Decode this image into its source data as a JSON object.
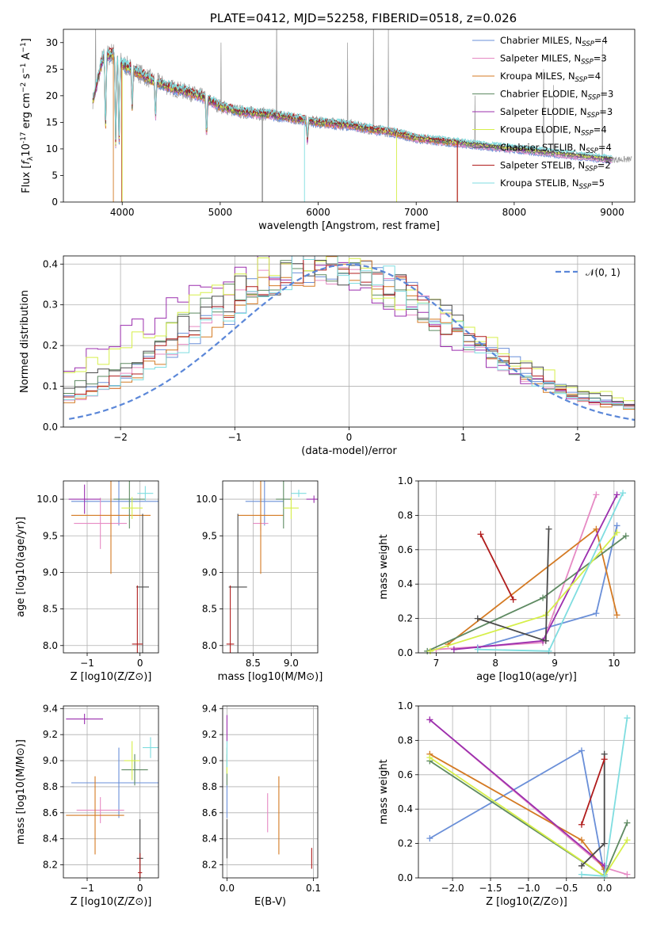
{
  "chart_data": [
    {
      "id": "spectrum",
      "type": "line",
      "title": "PLATE=0412, MJD=52258, FIBERID=0518, z=0.026",
      "xlabel": "wavelength [Angstrom, rest frame]",
      "ylabel_base": "Flux [",
      "ylabel_rest": "10",
      "ylabel_exp": "-17",
      "ylabel_tail": " erg cm",
      "xlim": [
        3400,
        9230
      ],
      "ylim": [
        0,
        32.5
      ],
      "xticks": [
        4000,
        5000,
        6000,
        7000,
        8000,
        9000
      ],
      "yticks": [
        0,
        5,
        10,
        15,
        20,
        25,
        30
      ],
      "grid": false,
      "legend_position": "top-right",
      "legend": [
        {
          "label": "Chabrier MILES, N",
          "sub": "SSP",
          "n": "=4",
          "color": "#6a8fd8"
        },
        {
          "label": "Salpeter MILES, N",
          "sub": "SSP",
          "n": "=3",
          "color": "#e68ac4"
        },
        {
          "label": "Kroupa MILES, N",
          "sub": "SSP",
          "n": "=4",
          "color": "#d47a23"
        },
        {
          "label": "Chabrier ELODIE, N",
          "sub": "SSP",
          "n": "=3",
          "color": "#5e8a62"
        },
        {
          "label": "Salpeter ELODIE, N",
          "sub": "SSP",
          "n": "=3",
          "color": "#9b2fae"
        },
        {
          "label": "Kroupa ELODIE, N",
          "sub": "SSP",
          "n": "=4",
          "color": "#d6ef4a"
        },
        {
          "label": "Chabrier STELIB, N",
          "sub": "SSP",
          "n": "=4",
          "color": "#4a4a4a"
        },
        {
          "label": "Salpeter STELIB, N",
          "sub": "SSP",
          "n": "=2",
          "color": "#b01c1c"
        },
        {
          "label": "Kroupa STELIB, N",
          "sub": "SSP",
          "n": "=5",
          "color": "#7fdde0"
        }
      ],
      "continuum": [
        [
          3700,
          19
        ],
        [
          3800,
          27
        ],
        [
          3900,
          28
        ],
        [
          4000,
          26
        ],
        [
          4100,
          25
        ],
        [
          4200,
          24
        ],
        [
          4300,
          23
        ],
        [
          4500,
          21.5
        ],
        [
          4800,
          20
        ],
        [
          5000,
          18
        ],
        [
          5200,
          17
        ],
        [
          5500,
          16.5
        ],
        [
          6000,
          15
        ],
        [
          6300,
          14.5
        ],
        [
          6600,
          13.5
        ],
        [
          6800,
          13
        ],
        [
          7000,
          12
        ],
        [
          7500,
          11
        ],
        [
          8000,
          10
        ],
        [
          8500,
          9
        ],
        [
          9000,
          8
        ]
      ],
      "dips": [
        [
          3934,
          0.6
        ],
        [
          3968,
          0.6
        ],
        [
          3830,
          0.5
        ],
        [
          4861,
          0.35
        ],
        [
          5890,
          0.25
        ],
        [
          4102,
          0.3
        ],
        [
          4340,
          0.3
        ]
      ],
      "spikes": [
        [
          3727,
          36
        ],
        [
          5007,
          30
        ],
        [
          5577,
          38
        ],
        [
          6300,
          30
        ],
        [
          6563,
          38
        ],
        [
          6717,
          33
        ],
        [
          7600,
          20
        ],
        [
          8300,
          25
        ],
        [
          8400,
          22
        ],
        [
          8900,
          30
        ]
      ]
    },
    {
      "id": "residuals",
      "type": "histogram",
      "xlabel": "(data-model)/error",
      "ylabel": "Normed distribution",
      "xlim": [
        -2.5,
        2.5
      ],
      "ylim": [
        0,
        0.42
      ],
      "xticks": [
        -2,
        -1,
        0,
        1,
        2
      ],
      "yticks": [
        0.0,
        0.1,
        0.2,
        0.3,
        0.4
      ],
      "grid": true,
      "legend_position": "top-right",
      "legend_label": "N(0,1)",
      "normal_color": "#5b87d8"
    },
    {
      "id": "age-vs-Z",
      "type": "scatter",
      "xlabel": "Z [log10(Z/Z⊙)]",
      "ylabel": "age  [log10(age/yr)]",
      "xlim": [
        -1.45,
        0.35
      ],
      "ylim": [
        7.9,
        10.25
      ],
      "xticks": [
        -1,
        0
      ],
      "yticks": [
        8.0,
        8.5,
        9.0,
        9.5,
        10.0
      ],
      "points": [
        {
          "x": -0.4,
          "y": 9.97,
          "xerr": 0.9,
          "yerr": 0.33,
          "c": 0
        },
        {
          "x": -0.75,
          "y": 9.67,
          "xerr": 0.5,
          "yerr": 0.35,
          "c": 1
        },
        {
          "x": -0.55,
          "y": 9.78,
          "xerr": 0.75,
          "yerr": 0.8,
          "c": 2
        },
        {
          "x": -0.2,
          "y": 10.0,
          "xerr": 0.3,
          "yerr": 0.4,
          "c": 3
        },
        {
          "x": -1.05,
          "y": 10.0,
          "xerr": 0.3,
          "yerr": 0.2,
          "c": 4
        },
        {
          "x": -0.15,
          "y": 9.88,
          "xerr": 0.2,
          "yerr": 0.15,
          "c": 5
        },
        {
          "x": 0.05,
          "y": 8.8,
          "xerr": 0.12,
          "yerr": 1.0,
          "c": 6
        },
        {
          "x": -0.05,
          "y": 8.02,
          "xerr": 0.1,
          "yerr": 0.8,
          "c": 7
        },
        {
          "x": 0.1,
          "y": 10.08,
          "xerr": 0.15,
          "yerr": 0.1,
          "c": 8
        }
      ]
    },
    {
      "id": "age-vs-mass",
      "type": "scatter",
      "xlabel": "mass [log10(M/M⊙)]",
      "ylabel": "",
      "xlim": [
        8.1,
        9.35
      ],
      "ylim": [
        7.9,
        10.25
      ],
      "xticks": [
        8.5,
        9.0
      ],
      "yticks": [
        8.0,
        8.5,
        9.0,
        9.5,
        10.0
      ],
      "points": [
        {
          "x": 8.65,
          "y": 9.97,
          "xerr": 0.25,
          "yerr": 0.33,
          "c": 0
        },
        {
          "x": 8.6,
          "y": 9.67,
          "xerr": 0.1,
          "yerr": 0.1,
          "c": 1
        },
        {
          "x": 8.6,
          "y": 9.78,
          "xerr": 0.3,
          "yerr": 0.8,
          "c": 2
        },
        {
          "x": 8.9,
          "y": 10.0,
          "xerr": 0.1,
          "yerr": 0.4,
          "c": 3
        },
        {
          "x": 9.3,
          "y": 10.0,
          "xerr": 0.1,
          "yerr": 0.05,
          "c": 4
        },
        {
          "x": 9.0,
          "y": 9.88,
          "xerr": 0.1,
          "yerr": 0.15,
          "c": 5
        },
        {
          "x": 8.3,
          "y": 8.8,
          "xerr": 0.12,
          "yerr": 1.0,
          "c": 6
        },
        {
          "x": 8.2,
          "y": 8.02,
          "xerr": 0.05,
          "yerr": 0.8,
          "c": 7
        },
        {
          "x": 9.1,
          "y": 10.08,
          "xerr": 0.1,
          "yerr": 0.05,
          "c": 8
        }
      ]
    },
    {
      "id": "weight-vs-age",
      "type": "line",
      "xlabel": "age  [log10(age/yr)]",
      "ylabel": "mass weight",
      "xlim": [
        6.7,
        10.35
      ],
      "ylim": [
        0,
        1.0
      ],
      "xticks": [
        7,
        8,
        9,
        10
      ],
      "yticks": [
        0.0,
        0.2,
        0.4,
        0.6,
        0.8,
        1.0
      ],
      "series": [
        {
          "c": 0,
          "x": [
            7.7,
            9.7,
            10.05
          ],
          "y": [
            0.03,
            0.23,
            0.74
          ]
        },
        {
          "c": 1,
          "x": [
            7.0,
            8.8,
            9.7
          ],
          "y": [
            0.02,
            0.06,
            0.92
          ]
        },
        {
          "c": 2,
          "x": [
            7.2,
            9.7,
            10.05
          ],
          "y": [
            0.05,
            0.72,
            0.22
          ]
        },
        {
          "c": 3,
          "x": [
            6.85,
            8.8,
            10.2
          ],
          "y": [
            0.01,
            0.32,
            0.68
          ]
        },
        {
          "c": 4,
          "x": [
            7.3,
            8.8,
            10.05
          ],
          "y": [
            0.02,
            0.07,
            0.92
          ]
        },
        {
          "c": 5,
          "x": [
            6.9,
            8.85,
            10.05
          ],
          "y": [
            0.01,
            0.22,
            0.7
          ]
        },
        {
          "c": 6,
          "x": [
            7.7,
            8.85,
            8.9
          ],
          "y": [
            0.2,
            0.07,
            0.72
          ]
        },
        {
          "c": 7,
          "x": [
            7.75,
            8.3
          ],
          "y": [
            0.69,
            0.31
          ]
        },
        {
          "c": 8,
          "x": [
            7.7,
            8.9,
            10.15
          ],
          "y": [
            0.02,
            0.01,
            0.93
          ]
        }
      ]
    },
    {
      "id": "mass-vs-Z",
      "type": "scatter",
      "xlabel": "Z [log10(Z/Z⊙)]",
      "ylabel": "mass [log10(M/M⊙)]",
      "xlim": [
        -1.45,
        0.35
      ],
      "ylim": [
        8.1,
        9.42
      ],
      "xticks": [
        -1,
        0
      ],
      "yticks": [
        8.2,
        8.4,
        8.6,
        8.8,
        9.0,
        9.2,
        9.4
      ],
      "points": [
        {
          "x": -0.4,
          "y": 8.83,
          "xerr": 0.9,
          "yerr": 0.27,
          "c": 0
        },
        {
          "x": -0.75,
          "y": 8.62,
          "xerr": 0.45,
          "yerr": 0.1,
          "c": 1
        },
        {
          "x": -0.85,
          "y": 8.58,
          "xerr": 0.55,
          "yerr": 0.3,
          "c": 2
        },
        {
          "x": -0.1,
          "y": 8.93,
          "xerr": 0.25,
          "yerr": 0.12,
          "c": 3
        },
        {
          "x": -1.05,
          "y": 9.32,
          "xerr": 0.35,
          "yerr": 0.04,
          "c": 4
        },
        {
          "x": -0.15,
          "y": 9.0,
          "xerr": 0.15,
          "yerr": 0.15,
          "c": 5
        },
        {
          "x": 0.0,
          "y": 8.25,
          "xerr": 0.06,
          "yerr": 0.3,
          "c": 6
        },
        {
          "x": 0.0,
          "y": 8.14,
          "xerr": 0.04,
          "yerr": 0.15,
          "c": 7
        },
        {
          "x": 0.2,
          "y": 9.1,
          "xerr": 0.15,
          "yerr": 0.08,
          "c": 8
        }
      ]
    },
    {
      "id": "mass-vs-ebv",
      "type": "scatter",
      "xlabel": "E(B-V)",
      "ylabel": "",
      "xlim": [
        -0.005,
        0.105
      ],
      "ylim": [
        8.1,
        9.42
      ],
      "xticks": [
        0.0,
        0.1
      ],
      "yticks": [
        8.2,
        8.4,
        8.6,
        8.8,
        9.0,
        9.2,
        9.4
      ],
      "points": [
        {
          "x": 0.0,
          "y": 8.83,
          "xerr": 0,
          "yerr": 0.27,
          "c": 0
        },
        {
          "x": 0.047,
          "y": 8.6,
          "xerr": 0,
          "yerr": 0.15,
          "c": 1
        },
        {
          "x": 0.06,
          "y": 8.58,
          "xerr": 0,
          "yerr": 0.3,
          "c": 2
        },
        {
          "x": 0.0,
          "y": 8.93,
          "xerr": 0,
          "yerr": 0.12,
          "c": 3
        },
        {
          "x": 0.0,
          "y": 9.25,
          "xerr": 0,
          "yerr": 0.1,
          "c": 4
        },
        {
          "x": 0.0,
          "y": 9.0,
          "xerr": 0,
          "yerr": 0.1,
          "c": 5
        },
        {
          "x": 0.0,
          "y": 8.4,
          "xerr": 0,
          "yerr": 0.15,
          "c": 6
        },
        {
          "x": 0.098,
          "y": 8.25,
          "xerr": 0,
          "yerr": 0.08,
          "c": 7
        },
        {
          "x": 0.0,
          "y": 9.05,
          "xerr": 0,
          "yerr": 0.1,
          "c": 8
        }
      ]
    },
    {
      "id": "weight-vs-Z",
      "type": "line",
      "xlabel": "Z [log10(Z/Z⊙)]",
      "ylabel": "mass weight",
      "xlim": [
        -2.45,
        0.4
      ],
      "ylim": [
        0,
        1.0
      ],
      "xticks": [
        -2.0,
        -1.5,
        -1.0,
        -0.5,
        0.0
      ],
      "yticks": [
        0.0,
        0.2,
        0.4,
        0.6,
        0.8,
        1.0
      ],
      "series": [
        {
          "c": 0,
          "x": [
            -2.3,
            -0.3,
            0.0
          ],
          "y": [
            0.23,
            0.74,
            0.02
          ]
        },
        {
          "c": 1,
          "x": [
            -2.3,
            0.0,
            0.3
          ],
          "y": [
            0.92,
            0.06,
            0.02
          ]
        },
        {
          "c": 2,
          "x": [
            -2.3,
            -0.3,
            0.0
          ],
          "y": [
            0.72,
            0.22,
            0.05
          ]
        },
        {
          "c": 3,
          "x": [
            -2.3,
            0.0,
            0.3
          ],
          "y": [
            0.68,
            0.01,
            0.32
          ]
        },
        {
          "c": 4,
          "x": [
            -2.3,
            0.0
          ],
          "y": [
            0.92,
            0.07
          ]
        },
        {
          "c": 5,
          "x": [
            -2.3,
            0.0,
            0.3
          ],
          "y": [
            0.7,
            0.01,
            0.22
          ]
        },
        {
          "c": 6,
          "x": [
            -0.3,
            0.0,
            0.0
          ],
          "y": [
            0.07,
            0.2,
            0.72
          ]
        },
        {
          "c": 7,
          "x": [
            -0.3,
            0.0
          ],
          "y": [
            0.31,
            0.69
          ]
        },
        {
          "c": 8,
          "x": [
            -0.3,
            0.0,
            0.3
          ],
          "y": [
            0.02,
            0.01,
            0.93
          ]
        }
      ]
    }
  ],
  "colors": [
    "#6a8fd8",
    "#e68ac4",
    "#d47a23",
    "#5e8a62",
    "#9b2fae",
    "#d6ef4a",
    "#4a4a4a",
    "#b01c1c",
    "#7fdde0"
  ],
  "data_color": "#999999"
}
